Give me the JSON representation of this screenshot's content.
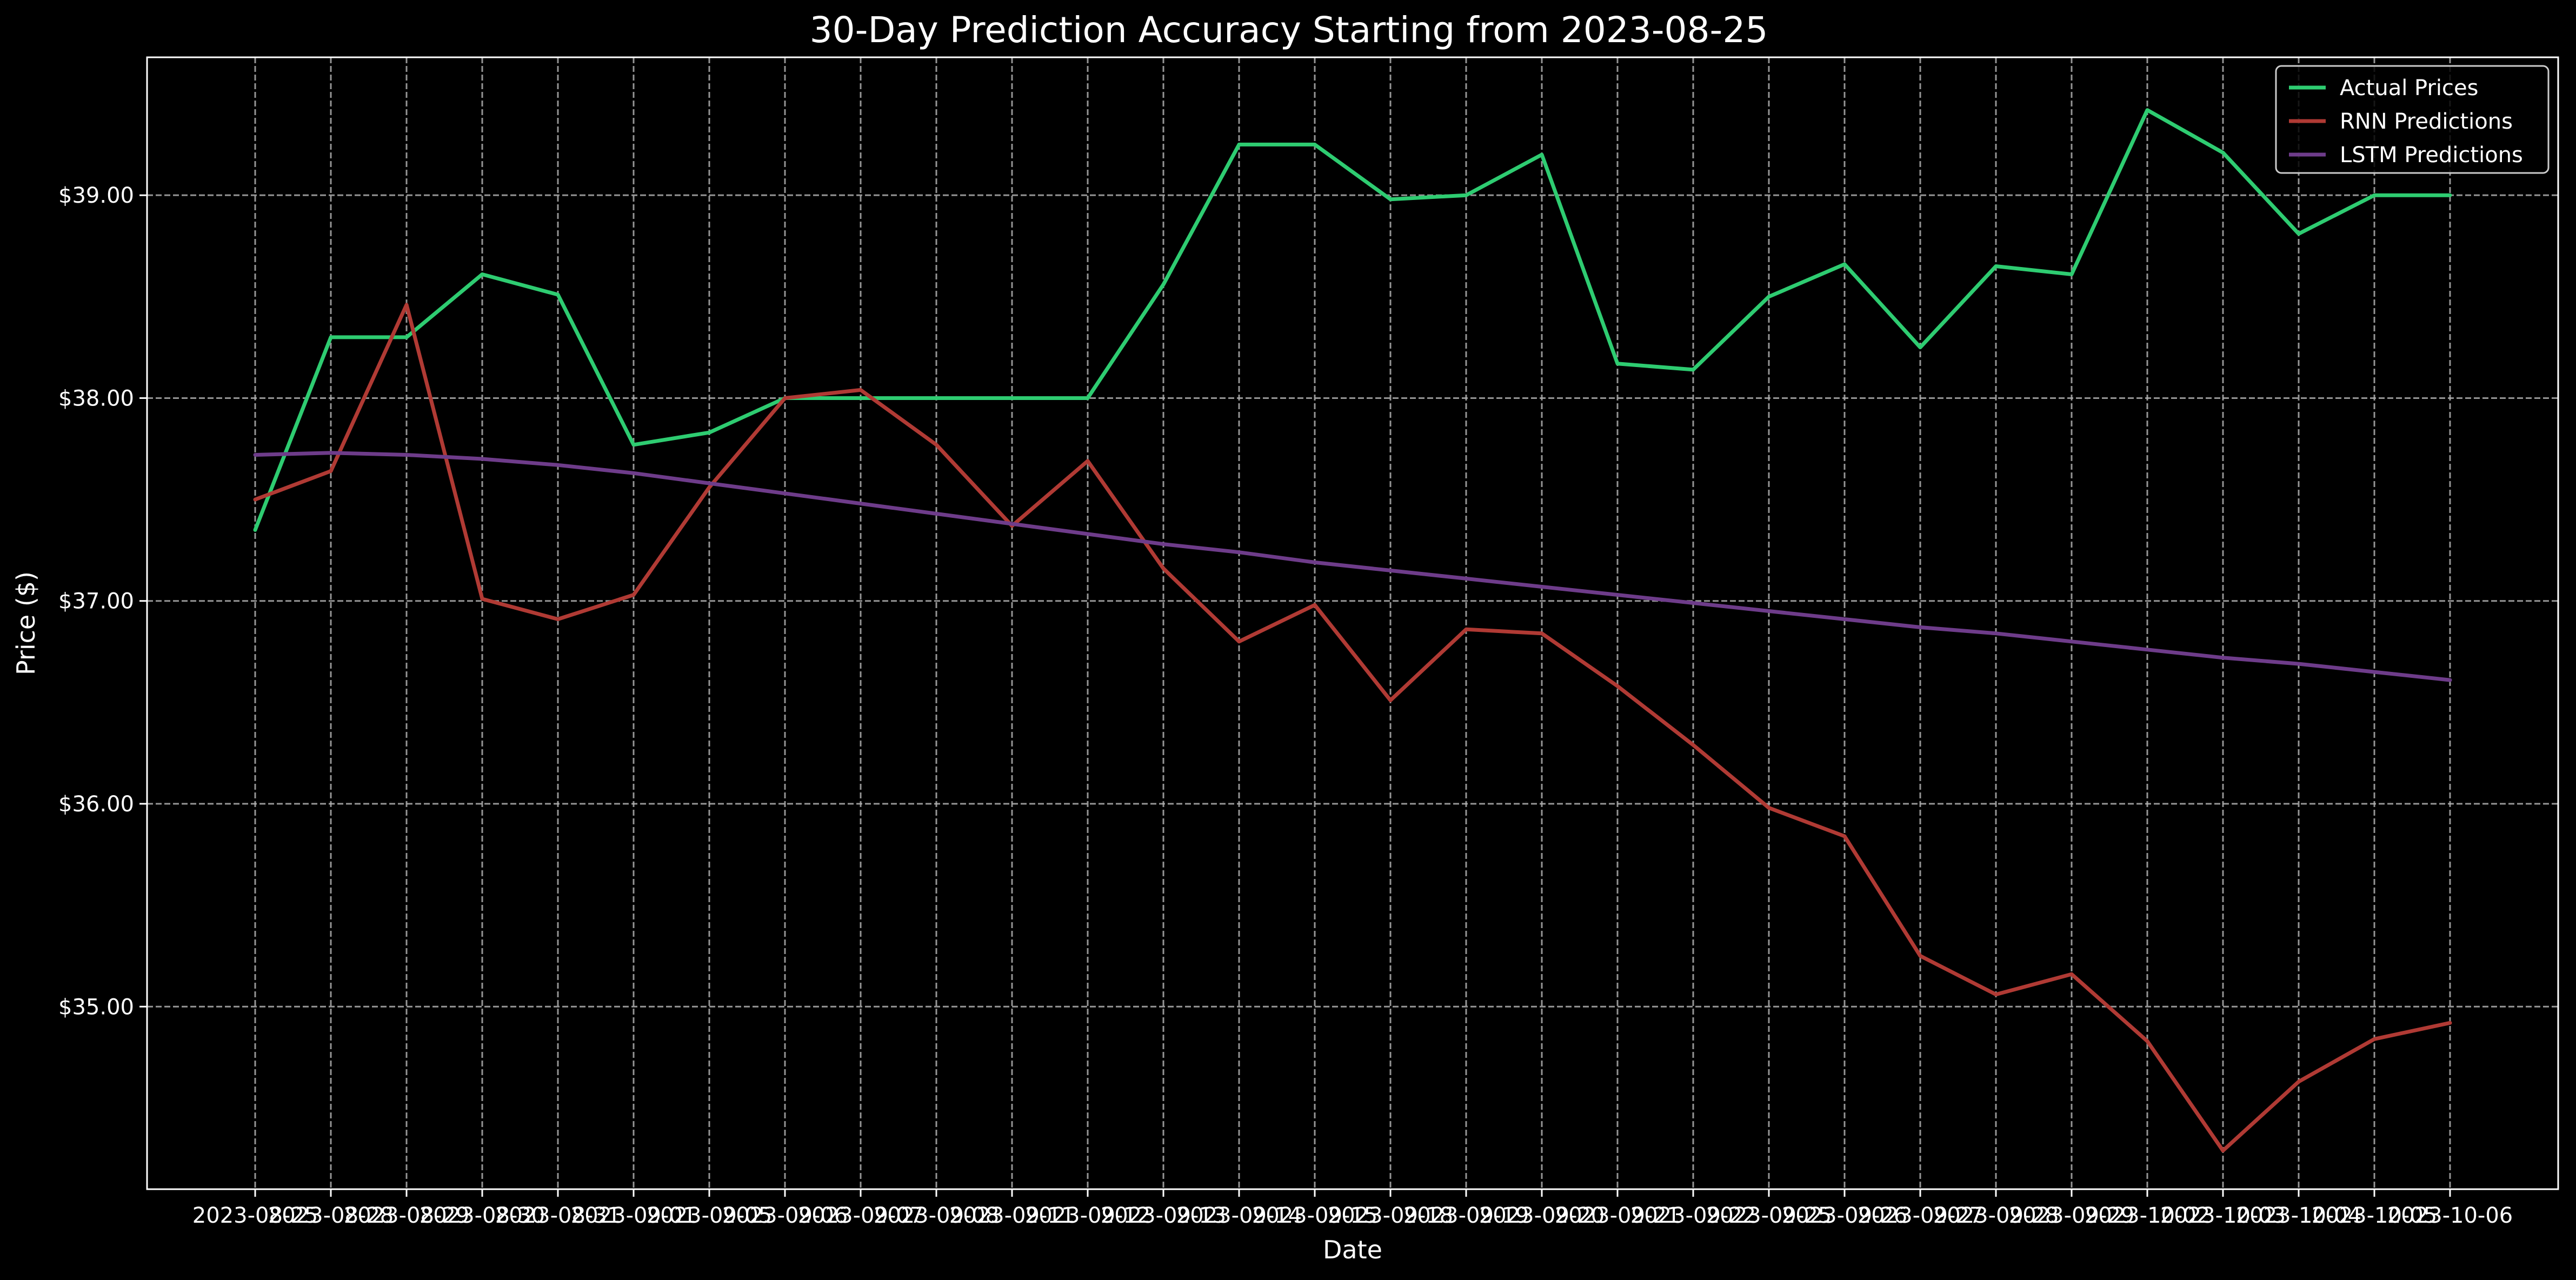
{
  "chart_data": {
    "type": "line",
    "title": "30-Day Prediction Accuracy Starting from 2023-08-25",
    "xlabel": "Date",
    "ylabel": "Price ($)",
    "x": [
      "2023-08-25",
      "2023-08-28",
      "2023-08-29",
      "2023-08-30",
      "2023-08-31",
      "2023-09-01",
      "2023-09-05",
      "2023-09-06",
      "2023-09-07",
      "2023-09-08",
      "2023-09-11",
      "2023-09-12",
      "2023-09-13",
      "2023-09-14",
      "2023-09-15",
      "2023-09-18",
      "2023-09-19",
      "2023-09-20",
      "2023-09-21",
      "2023-09-22",
      "2023-09-25",
      "2023-09-26",
      "2023-09-27",
      "2023-09-28",
      "2023-09-29",
      "2023-10-02",
      "2023-10-03",
      "2023-10-04",
      "2023-10-05",
      "2023-10-06"
    ],
    "ylim": [
      34.1,
      39.68
    ],
    "yticks": [
      35,
      36,
      37,
      38,
      39
    ],
    "ytick_labels": [
      "$35.00",
      "$36.00",
      "$37.00",
      "$38.00",
      "$39.00"
    ],
    "grid": true,
    "legend_position": "top-right",
    "series": [
      {
        "name": "Actual Prices",
        "color": "#2ecc71",
        "values": [
          37.35,
          38.3,
          38.3,
          38.61,
          38.51,
          37.77,
          37.83,
          38.0,
          38.0,
          38.0,
          38.0,
          38.0,
          38.56,
          39.25,
          39.25,
          38.98,
          39.0,
          39.2,
          38.17,
          38.14,
          38.5,
          38.66,
          38.25,
          38.65,
          38.61,
          39.42,
          39.21,
          38.81,
          39.0,
          39.0
        ]
      },
      {
        "name": "RNN Predictions",
        "color": "#b03a34",
        "values": [
          37.5,
          37.64,
          38.46,
          37.01,
          36.91,
          37.03,
          37.56,
          38.0,
          38.04,
          37.77,
          37.37,
          37.69,
          37.16,
          36.8,
          36.98,
          36.51,
          36.86,
          36.84,
          36.58,
          36.29,
          35.98,
          35.84,
          35.25,
          35.06,
          35.16,
          34.83,
          34.29,
          34.63,
          34.84,
          34.92
        ]
      },
      {
        "name": "LSTM Predictions",
        "color": "#6e3c8a",
        "values": [
          37.72,
          37.73,
          37.72,
          37.7,
          37.67,
          37.63,
          37.58,
          37.53,
          37.48,
          37.43,
          37.38,
          37.33,
          37.28,
          37.24,
          37.19,
          37.15,
          37.11,
          37.07,
          37.03,
          36.99,
          36.95,
          36.91,
          36.87,
          36.84,
          36.8,
          36.76,
          36.72,
          36.69,
          36.65,
          36.61
        ]
      }
    ]
  }
}
